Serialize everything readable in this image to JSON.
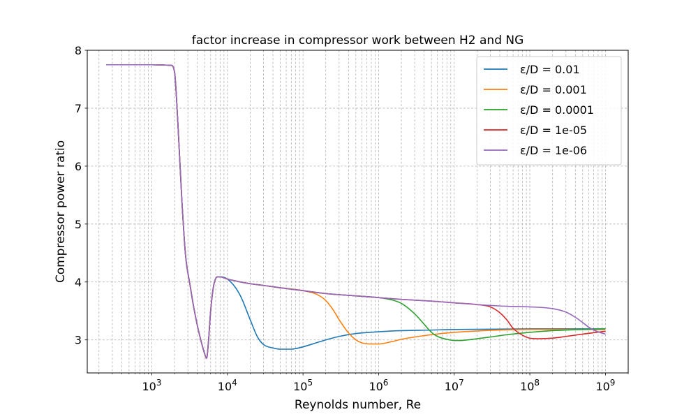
{
  "chart_data": {
    "type": "line",
    "title": "factor increase in compressor work between H2 and NG",
    "xlabel": "Reynolds number, Re",
    "ylabel": "Compressor power ratio",
    "x_scale": "log",
    "xlim": [
      140,
      2000000000
    ],
    "ylim": [
      2.43,
      8.0
    ],
    "grid": true,
    "grid_style": "dashed",
    "legend_position": "top-right",
    "x_ticks": [
      {
        "value": 1000,
        "base": "10",
        "exp": "3"
      },
      {
        "value": 10000,
        "base": "10",
        "exp": "4"
      },
      {
        "value": 100000,
        "base": "10",
        "exp": "5"
      },
      {
        "value": 1000000,
        "base": "10",
        "exp": "6"
      },
      {
        "value": 10000000,
        "base": "10",
        "exp": "7"
      },
      {
        "value": 100000000,
        "base": "10",
        "exp": "8"
      },
      {
        "value": 1000000000,
        "base": "10",
        "exp": "9"
      }
    ],
    "y_ticks": [
      "3",
      "4",
      "5",
      "6",
      "7",
      "8"
    ],
    "series": [
      {
        "name": "ε/D = 0.01",
        "color": "#1f77b4",
        "x": [
          250,
          1000,
          1800,
          2000,
          2200,
          2500,
          2800,
          3200,
          3600,
          4000,
          4500,
          5000,
          5300,
          5600,
          6000,
          6500,
          7000,
          7500,
          8000,
          9000,
          10000,
          12000,
          15000,
          20000,
          25000,
          30000,
          40000,
          50000,
          60000,
          70000,
          80000,
          100000,
          150000,
          200000,
          300000,
          500000,
          1000000,
          2000000,
          5000000,
          10000000,
          100000000,
          1000000000
        ],
        "y": [
          7.75,
          7.75,
          7.74,
          7.62,
          6.8,
          5.4,
          4.45,
          3.95,
          3.55,
          3.25,
          2.97,
          2.76,
          2.68,
          2.95,
          3.5,
          3.9,
          4.06,
          4.09,
          4.09,
          4.08,
          4.05,
          3.95,
          3.75,
          3.35,
          3.05,
          2.92,
          2.86,
          2.84,
          2.84,
          2.84,
          2.85,
          2.88,
          2.95,
          3.0,
          3.06,
          3.11,
          3.14,
          3.16,
          3.17,
          3.18,
          3.19,
          3.19
        ]
      },
      {
        "name": "ε/D = 0.001",
        "color": "#ff7f0e",
        "x": [
          250,
          1000,
          1800,
          2000,
          2200,
          2500,
          2800,
          3200,
          3600,
          4000,
          4500,
          5000,
          5300,
          5600,
          6000,
          6500,
          7000,
          7500,
          8000,
          9000,
          10000,
          15000,
          20000,
          30000,
          50000,
          80000,
          100000,
          150000,
          200000,
          250000,
          300000,
          400000,
          500000,
          600000,
          800000,
          1000000,
          1500000,
          2000000,
          5000000,
          10000000,
          100000000,
          1000000000
        ],
        "y": [
          7.75,
          7.75,
          7.74,
          7.62,
          6.8,
          5.4,
          4.45,
          3.95,
          3.55,
          3.25,
          2.97,
          2.76,
          2.68,
          2.95,
          3.5,
          3.9,
          4.06,
          4.09,
          4.09,
          4.07,
          4.05,
          4.0,
          3.97,
          3.94,
          3.9,
          3.87,
          3.85,
          3.79,
          3.68,
          3.52,
          3.35,
          3.12,
          3.0,
          2.95,
          2.93,
          2.93,
          2.97,
          3.01,
          3.09,
          3.13,
          3.18,
          3.18
        ]
      },
      {
        "name": "ε/D = 0.0001",
        "color": "#2ca02c",
        "x": [
          250,
          1000,
          1800,
          2000,
          2200,
          2500,
          2800,
          3200,
          3600,
          4000,
          4500,
          5000,
          5300,
          5600,
          6000,
          6500,
          7000,
          7500,
          8000,
          9000,
          10000,
          15000,
          20000,
          30000,
          50000,
          100000,
          200000,
          500000,
          1000000,
          1500000,
          2000000,
          3000000,
          4000000,
          5000000,
          6000000,
          8000000,
          10000000,
          12000000,
          15000000,
          20000000,
          30000000,
          50000000,
          100000000,
          200000000,
          1000000000
        ],
        "y": [
          7.75,
          7.75,
          7.74,
          7.62,
          6.8,
          5.4,
          4.45,
          3.95,
          3.55,
          3.25,
          2.97,
          2.76,
          2.68,
          2.95,
          3.5,
          3.9,
          4.06,
          4.09,
          4.09,
          4.07,
          4.05,
          4.0,
          3.97,
          3.94,
          3.9,
          3.85,
          3.8,
          3.76,
          3.73,
          3.69,
          3.63,
          3.45,
          3.27,
          3.13,
          3.06,
          3.01,
          2.99,
          2.99,
          3.0,
          3.02,
          3.05,
          3.09,
          3.13,
          3.16,
          3.19
        ]
      },
      {
        "name": "ε/D = 1e-05",
        "color": "#d62728",
        "x": [
          250,
          1000,
          1800,
          2000,
          2200,
          2500,
          2800,
          3200,
          3600,
          4000,
          4500,
          5000,
          5300,
          5600,
          6000,
          6500,
          7000,
          7500,
          8000,
          9000,
          10000,
          15000,
          20000,
          30000,
          50000,
          100000,
          200000,
          500000,
          1000000,
          2000000,
          5000000,
          10000000,
          20000000,
          30000000,
          40000000,
          50000000,
          60000000,
          80000000,
          100000000,
          130000000,
          200000000,
          300000000,
          500000000,
          1000000000
        ],
        "y": [
          7.75,
          7.75,
          7.74,
          7.62,
          6.8,
          5.4,
          4.45,
          3.95,
          3.55,
          3.25,
          2.97,
          2.76,
          2.68,
          2.95,
          3.5,
          3.9,
          4.06,
          4.09,
          4.09,
          4.07,
          4.05,
          4.0,
          3.97,
          3.94,
          3.9,
          3.85,
          3.8,
          3.76,
          3.73,
          3.7,
          3.67,
          3.64,
          3.61,
          3.57,
          3.47,
          3.34,
          3.2,
          3.08,
          3.03,
          3.02,
          3.03,
          3.06,
          3.1,
          3.15
        ]
      },
      {
        "name": "ε/D = 1e-06",
        "color": "#9467bd",
        "x": [
          250,
          1000,
          1800,
          2000,
          2200,
          2500,
          2800,
          3200,
          3600,
          4000,
          4500,
          5000,
          5300,
          5600,
          6000,
          6500,
          7000,
          7500,
          8000,
          9000,
          10000,
          15000,
          20000,
          30000,
          50000,
          100000,
          200000,
          500000,
          1000000,
          2000000,
          5000000,
          10000000,
          20000000,
          50000000,
          100000000,
          200000000,
          300000000,
          400000000,
          500000000,
          600000000,
          700000000,
          800000000,
          1000000000
        ],
        "y": [
          7.75,
          7.75,
          7.74,
          7.62,
          6.8,
          5.4,
          4.45,
          3.95,
          3.55,
          3.25,
          2.97,
          2.76,
          2.68,
          2.95,
          3.5,
          3.9,
          4.06,
          4.09,
          4.09,
          4.07,
          4.05,
          4.0,
          3.97,
          3.94,
          3.9,
          3.85,
          3.8,
          3.76,
          3.73,
          3.7,
          3.67,
          3.64,
          3.61,
          3.58,
          3.57,
          3.54,
          3.48,
          3.39,
          3.3,
          3.22,
          3.17,
          3.14,
          3.1
        ]
      }
    ]
  }
}
